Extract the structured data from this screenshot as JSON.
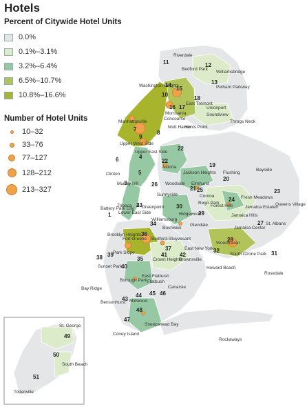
{
  "title": "Hotels",
  "legend_share": {
    "heading": "Percent of Citywide Hotel Units",
    "items": [
      {
        "label": "0.0%",
        "color": "#e4e6e8"
      },
      {
        "label": "0.1%–3.1%",
        "color": "#dcebc9"
      },
      {
        "label": "3.2%–6.4%",
        "color": "#96c9a3"
      },
      {
        "label": "6.5%–10.7%",
        "color": "#b2c35a"
      },
      {
        "label": "10.8%–16.6%",
        "color": "#a8b52c"
      }
    ]
  },
  "legend_units": {
    "heading": "Number of Hotel Units",
    "dot_color": "#f0a24a",
    "items": [
      {
        "label": "10–32"
      },
      {
        "label": "33–76"
      },
      {
        "label": "77–127"
      },
      {
        "label": "128–212"
      },
      {
        "label": "213–327"
      }
    ]
  },
  "districts": [
    "1",
    "2",
    "3",
    "4",
    "5",
    "6",
    "7",
    "8",
    "9",
    "10",
    "11",
    "12",
    "13",
    "14",
    "15",
    "16",
    "17",
    "18",
    "19",
    "20",
    "21",
    "22",
    "23",
    "24",
    "25",
    "26",
    "27",
    "28",
    "29",
    "30",
    "31",
    "32",
    "33",
    "34",
    "35",
    "36",
    "37",
    "38",
    "39",
    "40",
    "41",
    "42",
    "43",
    "44",
    "45",
    "46",
    "47",
    "48",
    "49",
    "50",
    "51"
  ],
  "places": [
    "Riverdale",
    "Bedford Park",
    "Williamsbridge",
    "Pelham Parkway",
    "Washington Heights",
    "East Tremont",
    "Morrisania",
    "Concourse",
    "Unionport",
    "Soundview",
    "Throgs Neck",
    "Manhattanville",
    "Mott Haven",
    "Hunts Point",
    "Upper West Side",
    "Upper East Side",
    "Clinton",
    "Murray Hill",
    "Astoria",
    "Jackson Heights",
    "Flushing",
    "Bayside",
    "Woodside",
    "Elmhurst",
    "Corona",
    "Fresh Meadows",
    "Queens Village",
    "Sunnyside",
    "Rego Park",
    "Forest Hills",
    "Jamaica Estates",
    "Jamaica Hills",
    "St. Albans",
    "Jamaica Center",
    "Tribeca",
    "Lower East Side",
    "Battery Park City",
    "Greenpoint",
    "Williamsburg",
    "Bushwick",
    "Ridgewood",
    "Glendale",
    "Brooklyn Heights",
    "Fort Greene",
    "Bedford-Stuyvesant",
    "East New York",
    "Brownsville",
    "Woodhaven",
    "South Ozone Park",
    "Howard Beach",
    "Rosedale",
    "Park Slope",
    "Sunset Park",
    "Crown Heights",
    "Borough Park",
    "East Flatbush",
    "Bay Ridge",
    "Bensonhurst",
    "Midwood",
    "Flatbush",
    "Canarsie",
    "Sheepshead Bay",
    "Coney Island",
    "Rockaways",
    "St. George",
    "South Beach",
    "Tottenville"
  ]
}
